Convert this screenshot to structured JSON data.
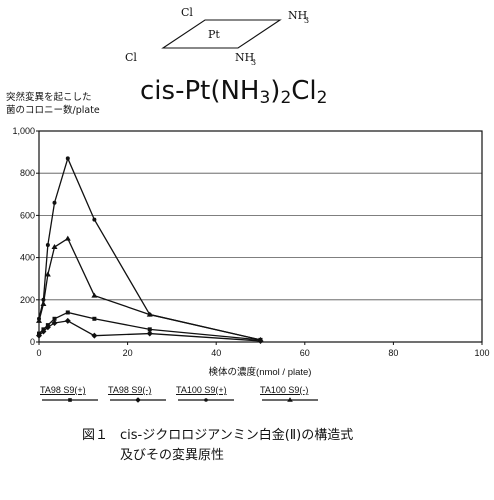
{
  "structure": {
    "cl_top": "Cl",
    "pt": "Pt",
    "nh3_top": "NH",
    "nh3_top_sub": "3",
    "cl_left": "Cl",
    "nh3_bottom": "NH",
    "nh3_bottom_sub": "3"
  },
  "formula": {
    "prefix": "cis-Pt(NH",
    "sub1": "3",
    "mid": ")",
    "sub2": "2",
    "suffix": "Cl",
    "sub3": "2"
  },
  "caption": {
    "figure_no": "図１",
    "line1": "cis-ジクロロジアンミン白金(Ⅱ)の構造式",
    "line2": "及びその変異原性"
  },
  "chart_data": {
    "type": "line",
    "title": "",
    "ylabel": [
      "突然変異を起こした",
      "菌のコロニー数/plate"
    ],
    "xlabel": "検体の濃度(nmol / plate)",
    "xlim": [
      0,
      100
    ],
    "ylim": [
      0,
      1000
    ],
    "xticks": [
      0,
      20,
      40,
      60,
      80,
      100
    ],
    "yticks": [
      0,
      200,
      400,
      600,
      800,
      1000
    ],
    "ytick_labels": [
      "0",
      "200",
      "400",
      "600",
      "800",
      "1,000"
    ],
    "grid": "horizontal",
    "legend_position": "bottom",
    "series": [
      {
        "name": "TA98 S9(+)",
        "marker": "square",
        "x": [
          0,
          1,
          2,
          3.5,
          6.5,
          12.5,
          25,
          50
        ],
        "y": [
          40,
          60,
          80,
          110,
          140,
          110,
          60,
          10
        ]
      },
      {
        "name": "TA98 S9(-)",
        "marker": "diamond",
        "x": [
          0,
          1,
          2,
          3.5,
          6.5,
          12.5,
          25,
          50
        ],
        "y": [
          30,
          50,
          70,
          90,
          100,
          30,
          40,
          5
        ]
      },
      {
        "name": "TA100 S9(+)",
        "marker": "circle",
        "x": [
          0,
          1,
          2,
          3.5,
          6.5,
          12.5,
          25,
          50
        ],
        "y": [
          110,
          200,
          460,
          660,
          870,
          580,
          130,
          10
        ]
      },
      {
        "name": "TA100 S9(-)",
        "marker": "triangle",
        "x": [
          0,
          1,
          2,
          3.5,
          6.5,
          12.5,
          25,
          50
        ],
        "y": [
          100,
          180,
          320,
          450,
          490,
          220,
          130,
          10
        ]
      }
    ]
  }
}
